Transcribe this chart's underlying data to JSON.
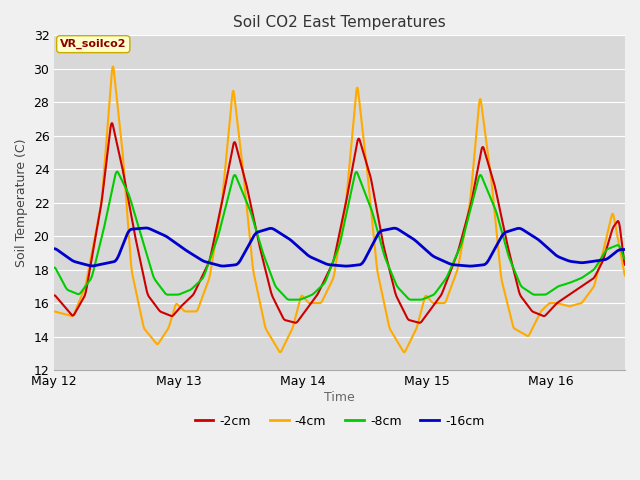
{
  "title": "Soil CO2 East Temperatures",
  "xlabel": "Time",
  "ylabel": "Soil Temperature (C)",
  "ylim": [
    12,
    32
  ],
  "xlim": [
    0,
    4.6
  ],
  "xtick_positions": [
    0,
    1,
    2,
    3,
    4
  ],
  "xtick_labels": [
    "May 12",
    "May 13",
    "May 14",
    "May 15",
    "May 16"
  ],
  "ytick_positions": [
    12,
    14,
    16,
    18,
    20,
    22,
    24,
    26,
    28,
    30,
    32
  ],
  "colors": {
    "-2cm": "#cc0000",
    "-4cm": "#ffaa00",
    "-8cm": "#00cc00",
    "-16cm": "#0000cc"
  },
  "legend_label": "VR_soilco2",
  "fig_bg": "#f0f0f0",
  "plot_bg": "#d8d8d8",
  "grid_color": "#ffffff"
}
